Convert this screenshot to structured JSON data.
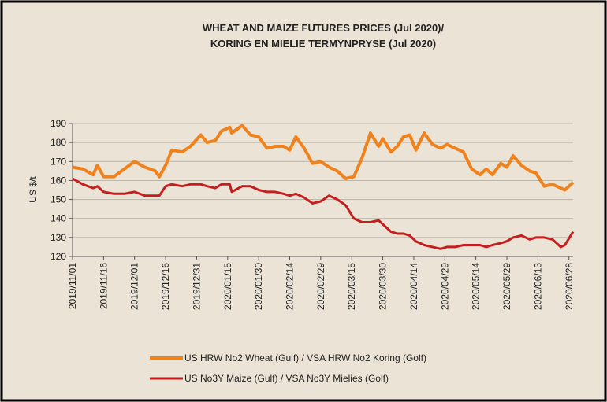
{
  "chart_data": {
    "type": "line",
    "title": "WHEAT AND MAIZE FUTURES PRICES (Jul 2020)/",
    "subtitle": "KORING EN MIELIE TERMYNPRYSE  (Jul 2020)",
    "y_label": "US $/t",
    "x": [
      "2019/11/01",
      "2019/11/06",
      "2019/11/11",
      "2019/11/13",
      "2019/11/16",
      "2019/11/21",
      "2019/11/26",
      "2019/12/01",
      "2019/12/06",
      "2019/12/11",
      "2019/12/13",
      "2019/12/16",
      "2019/12/19",
      "2019/12/24",
      "2019/12/28",
      "2020/01/02",
      "2020/01/05",
      "2020/01/09",
      "2020/01/12",
      "2020/01/16",
      "2020/01/17",
      "2020/01/22",
      "2020/01/26",
      "2020/01/30",
      "2020/02/03",
      "2020/02/07",
      "2020/02/11",
      "2020/02/14",
      "2020/02/17",
      "2020/02/21",
      "2020/02/25",
      "2020/02/29",
      "2020/03/04",
      "2020/03/08",
      "2020/03/12",
      "2020/03/16",
      "2020/03/20",
      "2020/03/24",
      "2020/03/28",
      "2020/03/30",
      "2020/04/03",
      "2020/04/06",
      "2020/04/09",
      "2020/04/12",
      "2020/04/15",
      "2020/04/19",
      "2020/04/23",
      "2020/04/27",
      "2020/04/30",
      "2020/05/04",
      "2020/05/08",
      "2020/05/12",
      "2020/05/16",
      "2020/05/19",
      "2020/05/22",
      "2020/05/26",
      "2020/05/29",
      "2020/06/01",
      "2020/06/05",
      "2020/06/09",
      "2020/06/12",
      "2020/06/16",
      "2020/06/20",
      "2020/06/24",
      "2020/06/26",
      "2020/06/30"
    ],
    "series": [
      {
        "name": "US HRW No2 Wheat (Gulf) / VSA HRW No2 Koring (Golf)",
        "color": "#f0821e",
        "values": [
          167,
          166,
          163,
          168,
          162,
          162,
          166,
          170,
          167,
          165,
          162,
          168,
          176,
          175,
          178,
          184,
          180,
          181,
          186,
          188,
          185,
          189,
          184,
          183,
          177,
          178,
          178,
          176,
          183,
          177,
          169,
          170,
          167,
          165,
          161,
          162,
          172,
          185,
          178,
          182,
          175,
          178,
          183,
          184,
          176,
          185,
          179,
          177,
          179,
          177,
          175,
          166,
          163,
          166,
          163,
          169,
          167,
          173,
          168,
          165,
          164,
          157,
          158,
          156,
          155,
          159
        ]
      },
      {
        "name": "US No3Y Maize (Gulf) / VSA No3Y Mielies (Golf)",
        "color": "#c41e1e",
        "values": [
          161,
          158,
          156,
          157,
          154,
          153,
          153,
          154,
          152,
          152,
          152,
          157,
          158,
          157,
          158,
          158,
          157,
          156,
          158,
          158,
          154,
          157,
          157,
          155,
          154,
          154,
          153,
          152,
          153,
          151,
          148,
          149,
          152,
          150,
          147,
          140,
          138,
          138,
          139,
          137,
          133,
          132,
          132,
          131,
          128,
          126,
          125,
          124,
          125,
          125,
          126,
          126,
          126,
          125,
          126,
          127,
          128,
          130,
          131,
          129,
          130,
          130,
          129,
          125,
          126,
          133
        ]
      }
    ],
    "xlim": [
      "2019/11/01",
      "2020/06/30"
    ],
    "xticks": [
      "2019/11/01",
      "2019/11/16",
      "2019/12/01",
      "2019/12/16",
      "2019/12/31",
      "2020/01/15",
      "2020/01/30",
      "2020/02/14",
      "2020/02/29",
      "2020/03/15",
      "2020/03/30",
      "2020/04/14",
      "2020/04/29",
      "2020/05/14",
      "2020/05/29",
      "2020/06/13",
      "2020/06/28"
    ],
    "ylim": [
      120,
      190
    ],
    "yticks": [
      120,
      130,
      140,
      150,
      160,
      170,
      180,
      190
    ],
    "grid": true
  }
}
